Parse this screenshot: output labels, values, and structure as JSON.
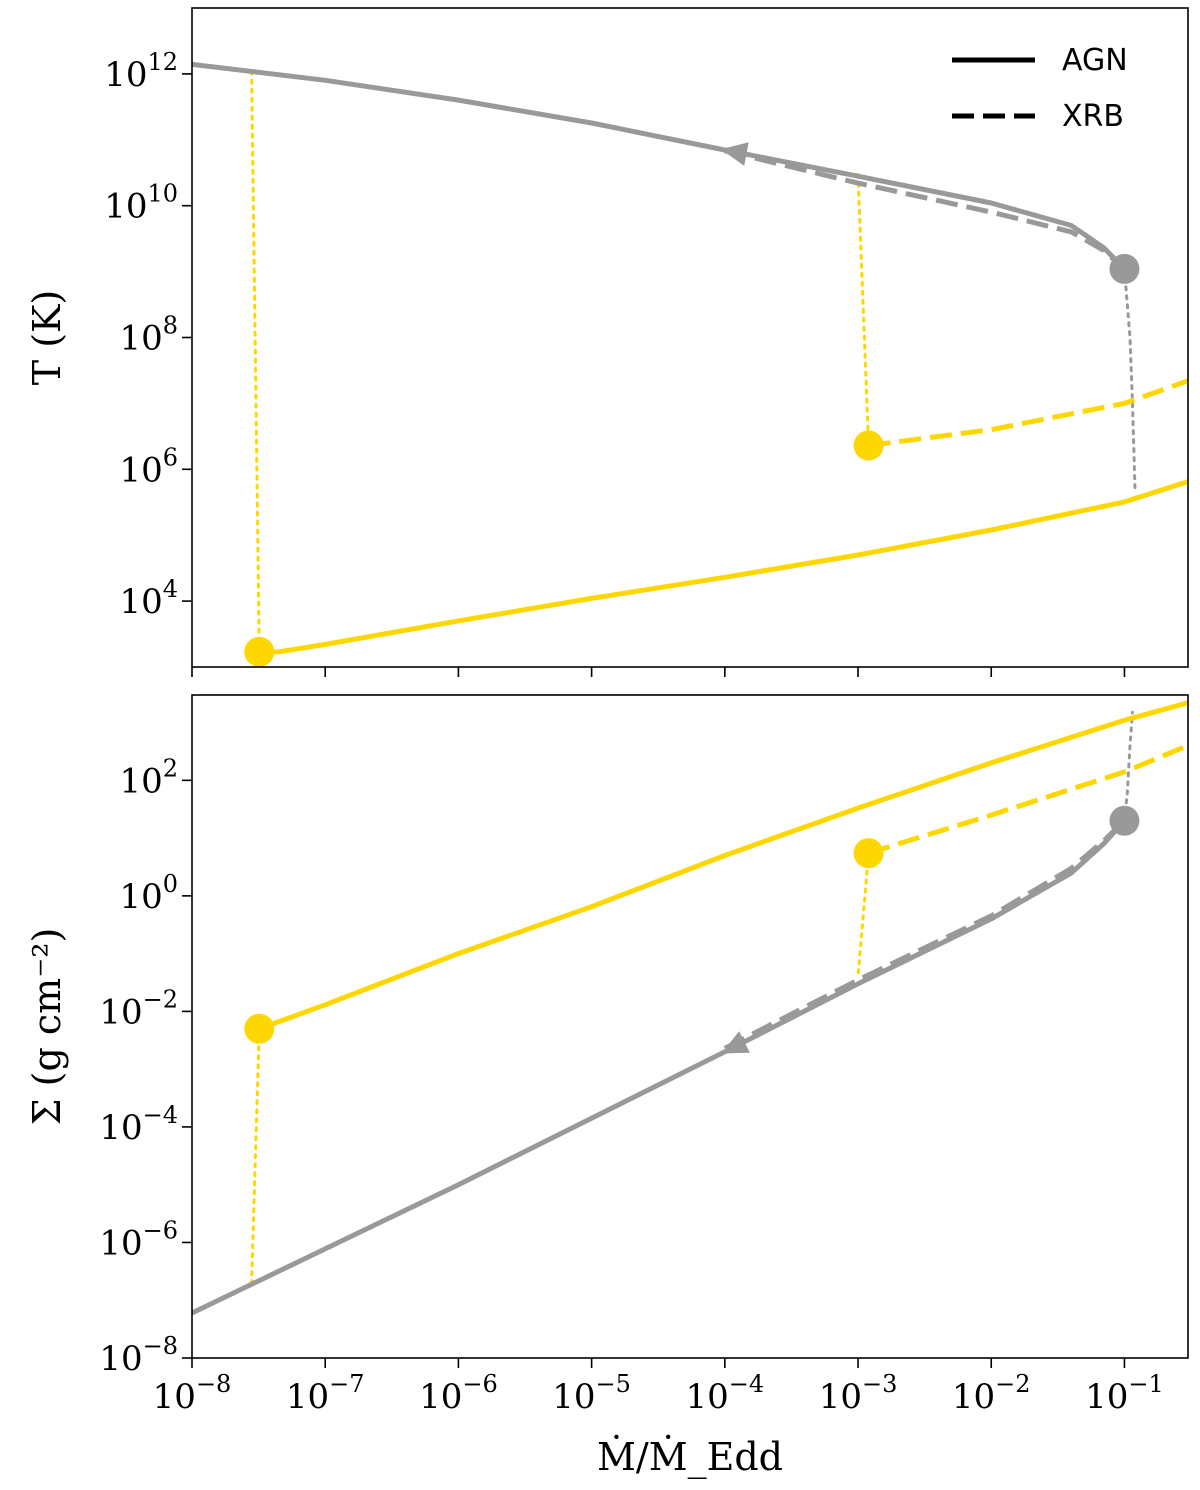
{
  "chart_data": [
    {
      "type": "line",
      "panel": "top",
      "ylabel": "T (K)",
      "xscale": "log",
      "yscale": "log",
      "xlim": [
        1e-08,
        0.3
      ],
      "ylim": [
        1000,
        10000000000000.0
      ],
      "yticks": [
        {
          "base": "10",
          "exp": "4",
          "value": 10000.0
        },
        {
          "base": "10",
          "exp": "6",
          "value": 1000000.0
        },
        {
          "base": "10",
          "exp": "8",
          "value": 100000000.0
        },
        {
          "base": "10",
          "exp": "10",
          "value": 10000000000.0
        },
        {
          "base": "10",
          "exp": "12",
          "value": 1000000000000.0
        }
      ],
      "legend": {
        "position": "top-right",
        "entries": [
          {
            "label": "AGN",
            "style": "solid"
          },
          {
            "label": "XRB",
            "style": "dashed"
          }
        ]
      },
      "series": [
        {
          "color": "#999999",
          "style": "solid",
          "points": [
            [
              1e-08,
              1400000000000.0
            ],
            [
              1e-07,
              800000000000.0
            ],
            [
              1e-06,
              400000000000.0
            ],
            [
              1e-05,
              180000000000.0
            ],
            [
              0.0001,
              70000000000.0
            ],
            [
              0.001,
              28000000000.0
            ],
            [
              0.01,
              11000000000.0
            ],
            [
              0.04,
              5000000000.0
            ],
            [
              0.07,
              2300000000.0
            ],
            [
              0.1,
              1100000000.0
            ]
          ]
        },
        {
          "color": "#999999",
          "style": "dashed",
          "points": [
            [
              0.0001,
              68000000000.0
            ],
            [
              0.001,
              22000000000.0
            ],
            [
              0.01,
              8000000000.0
            ],
            [
              0.04,
              4000000000.0
            ],
            [
              0.07,
              2100000000.0
            ],
            [
              0.1,
              1100000000.0
            ]
          ]
        },
        {
          "color": "#999999",
          "style": "dotted",
          "points": [
            [
              0.1,
              1100000000.0
            ],
            [
              0.11,
              100000000.0
            ],
            [
              0.115,
              10000000.0
            ],
            [
              0.12,
              500000.0
            ]
          ]
        },
        {
          "color": "#FFD700",
          "style": "solid",
          "points": [
            [
              3.2e-08,
              1700.0
            ],
            [
              4.5e-08,
              1700.0
            ],
            [
              1e-07,
              2200.0
            ],
            [
              1e-06,
              5000.0
            ],
            [
              1e-05,
              11000.0
            ],
            [
              0.0001,
              23000.0
            ],
            [
              0.001,
              50000.0
            ],
            [
              0.01,
              120000.0
            ],
            [
              0.1,
              320000.0
            ],
            [
              0.3,
              650000.0
            ]
          ]
        },
        {
          "color": "#FFD700",
          "style": "dashed",
          "points": [
            [
              0.0012,
              2300000.0
            ],
            [
              0.01,
              4000000.0
            ],
            [
              0.1,
              10000000.0
            ],
            [
              0.3,
              22000000.0
            ]
          ]
        },
        {
          "color": "#FFD700",
          "style": "dotted",
          "points": [
            [
              2.8e-08,
              1100000000000.0
            ],
            [
              3.2e-08,
              1700.0
            ]
          ]
        },
        {
          "color": "#FFD700",
          "style": "dotted",
          "points": [
            [
              0.001,
              30000000000.0
            ],
            [
              0.0012,
              2300000.0
            ]
          ]
        }
      ],
      "markers": [
        {
          "x": 3.2e-08,
          "y": 1700.0,
          "color": "#FFD700"
        },
        {
          "x": 0.0012,
          "y": 2300000.0,
          "color": "#FFD700"
        },
        {
          "x": 0.1,
          "y": 1100000000.0,
          "color": "#999999"
        }
      ],
      "arrows": [
        {
          "x": 0.0001,
          "y": 70000000000.0,
          "toward": [
            1e-06,
            400000000000.0
          ]
        }
      ]
    },
    {
      "type": "line",
      "panel": "bottom",
      "ylabel": "Σ (g cm⁻²)",
      "xlabel": "Ṁ/Ṁ_Edd",
      "xscale": "log",
      "yscale": "log",
      "xlim": [
        1e-08,
        0.3
      ],
      "ylim": [
        1e-08,
        3000.0
      ],
      "xticks": [
        {
          "base": "10",
          "exp": "−8",
          "value": 1e-08
        },
        {
          "base": "10",
          "exp": "−7",
          "value": 1e-07
        },
        {
          "base": "10",
          "exp": "−6",
          "value": 1e-06
        },
        {
          "base": "10",
          "exp": "−5",
          "value": 1e-05
        },
        {
          "base": "10",
          "exp": "−4",
          "value": 0.0001
        },
        {
          "base": "10",
          "exp": "−3",
          "value": 0.001
        },
        {
          "base": "10",
          "exp": "−2",
          "value": 0.01
        },
        {
          "base": "10",
          "exp": "−1",
          "value": 0.1
        }
      ],
      "yticks": [
        {
          "base": "10",
          "exp": "−8",
          "value": 1e-08
        },
        {
          "base": "10",
          "exp": "−6",
          "value": 1e-06
        },
        {
          "base": "10",
          "exp": "−4",
          "value": 0.0001
        },
        {
          "base": "10",
          "exp": "−2",
          "value": 0.01
        },
        {
          "base": "10",
          "exp": "0",
          "value": 1
        },
        {
          "base": "10",
          "exp": "2",
          "value": 100
        }
      ],
      "series": [
        {
          "color": "#999999",
          "style": "solid",
          "points": [
            [
              1e-08,
              6e-08
            ],
            [
              1e-06,
              1e-05
            ],
            [
              0.0001,
              0.002
            ],
            [
              0.001,
              0.03
            ],
            [
              0.01,
              0.4
            ],
            [
              0.04,
              2.5
            ],
            [
              0.07,
              8
            ],
            [
              0.1,
              20
            ]
          ]
        },
        {
          "color": "#999999",
          "style": "dashed",
          "points": [
            [
              0.0001,
              0.0023
            ],
            [
              0.001,
              0.035
            ],
            [
              0.01,
              0.45
            ],
            [
              0.04,
              3
            ],
            [
              0.07,
              9
            ],
            [
              0.1,
              20
            ]
          ]
        },
        {
          "color": "#999999",
          "style": "dotted",
          "points": [
            [
              0.1,
              20
            ],
            [
              0.105,
              60
            ],
            [
              0.11,
              400
            ],
            [
              0.115,
              1500
            ]
          ]
        },
        {
          "color": "#FFD700",
          "style": "solid",
          "points": [
            [
              3.2e-08,
              0.005
            ],
            [
              1e-07,
              0.013
            ],
            [
              1e-06,
              0.1
            ],
            [
              1e-05,
              0.65
            ],
            [
              0.0001,
              5
            ],
            [
              0.001,
              33
            ],
            [
              0.01,
              200
            ],
            [
              0.1,
              1100
            ],
            [
              0.3,
              2200
            ]
          ]
        },
        {
          "color": "#FFD700",
          "style": "dashed",
          "points": [
            [
              0.0012,
              5.5
            ],
            [
              0.01,
              25
            ],
            [
              0.1,
              140
            ],
            [
              0.3,
              400
            ]
          ]
        },
        {
          "color": "#FFD700",
          "style": "dotted",
          "points": [
            [
              3.2e-08,
              0.005
            ],
            [
              2.8e-08,
              2e-07
            ]
          ]
        },
        {
          "color": "#FFD700",
          "style": "dotted",
          "points": [
            [
              0.0012,
              5.5
            ],
            [
              0.001,
              0.04
            ]
          ]
        }
      ],
      "markers": [
        {
          "x": 3.2e-08,
          "y": 0.005,
          "color": "#FFD700"
        },
        {
          "x": 0.0012,
          "y": 5.5,
          "color": "#FFD700"
        },
        {
          "x": 0.1,
          "y": 20,
          "color": "#999999"
        }
      ],
      "arrows": [
        {
          "x": 0.0001,
          "y": 0.002,
          "toward": [
            1e-06,
            1e-05
          ]
        }
      ]
    }
  ]
}
